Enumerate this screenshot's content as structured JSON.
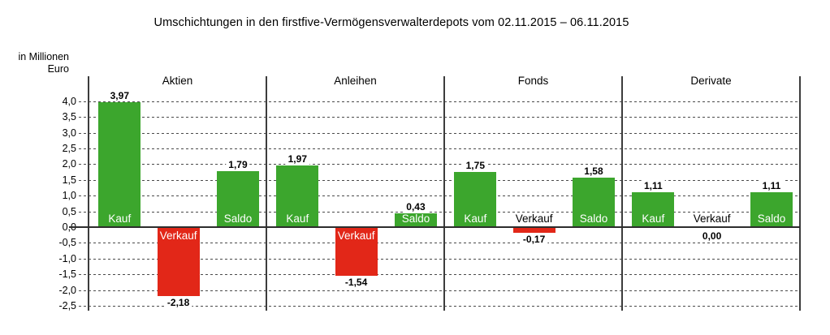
{
  "y_axis_unit": {
    "line1": "in Millionen",
    "line2": "Euro"
  },
  "chart_data": {
    "type": "bar",
    "title": "Umschichtungen in den firstfive-Vermögensverwalterdepots vom 02.11.2015 – 06.11.2015",
    "ylabel": "in Millionen Euro",
    "ylim": [
      -2.5,
      4.0
    ],
    "ytick_step": 0.5,
    "yticks": [
      "4,0",
      "3,5",
      "3,0",
      "2,5",
      "2,0",
      "1,5",
      "1,0",
      "0,5",
      "0,0",
      "-0,5",
      "-1,0",
      "-1,5",
      "-2,0",
      "-2,5"
    ],
    "grid": "horizontal dashed",
    "legend": "none",
    "decimal_separator": ",",
    "categories": [
      "Aktien",
      "Anleihen",
      "Fonds",
      "Derivate"
    ],
    "series": [
      {
        "name": "Kauf",
        "color": "#3CA62D",
        "values": [
          3.97,
          1.97,
          1.75,
          1.11
        ]
      },
      {
        "name": "Verkauf",
        "color": "#E22718",
        "values": [
          -2.18,
          -1.54,
          -0.17,
          0.0
        ]
      },
      {
        "name": "Saldo",
        "color": "#3CA62D",
        "values": [
          1.79,
          0.43,
          1.58,
          1.11
        ]
      }
    ],
    "colors": {
      "positive": "#3CA62D",
      "negative": "#E22718",
      "zero_line": "#2d2d2d"
    }
  }
}
